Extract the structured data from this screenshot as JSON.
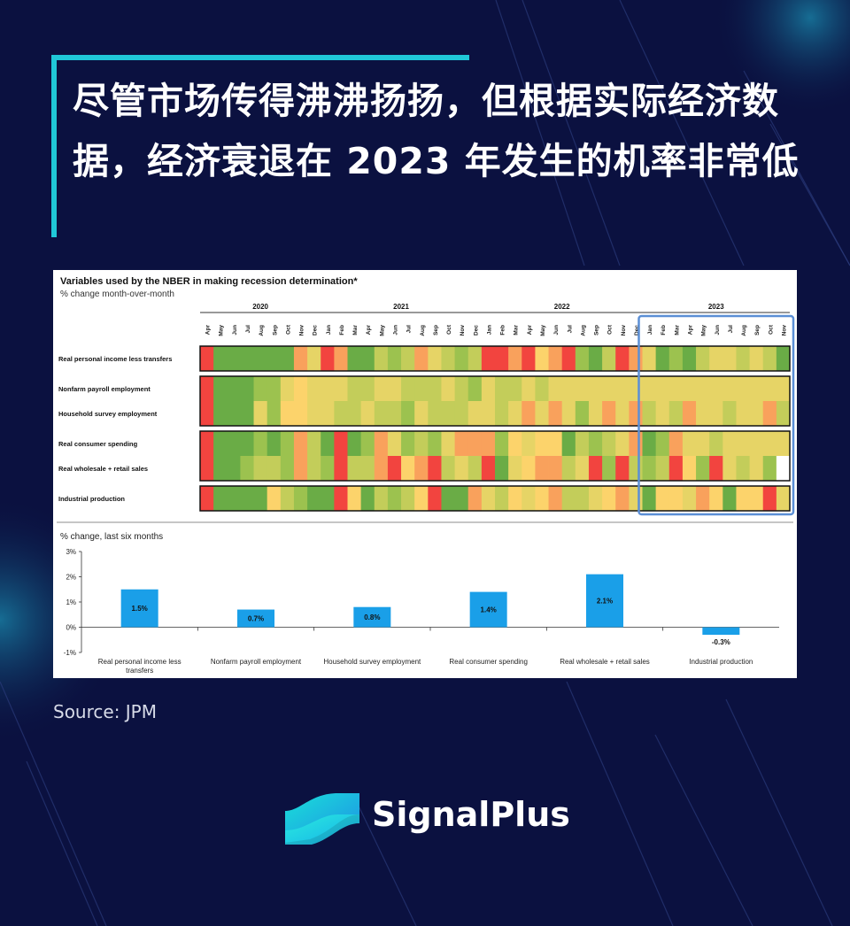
{
  "headline": "尽管市场传得沸沸扬扬，但根据实际经济数据，经济衰退在 2023 年发生的机率非常低",
  "source": "Source: JPM",
  "brand": {
    "name": "SignalPlus"
  },
  "colors": {
    "background": "#0b1140",
    "accent": "#20c8d8",
    "bar": "#1a9fe8",
    "highlight_box": "#5b8fd6"
  },
  "chart_data": [
    {
      "type": "heatmap",
      "title": "Variables used by the NBER in making recession determination*",
      "subtitle": "% change month-over-month",
      "years": [
        {
          "label": "2020",
          "start": 0,
          "end": 8
        },
        {
          "label": "2021",
          "start": 9,
          "end": 20
        },
        {
          "label": "2022",
          "start": 21,
          "end": 32
        },
        {
          "label": "2023",
          "start": 33,
          "end": 43
        }
      ],
      "months": [
        "Apr",
        "May",
        "Jun",
        "Jul",
        "Aug",
        "Sep",
        "Oct",
        "Nov",
        "Dec",
        "Jan",
        "Feb",
        "Mar",
        "Apr",
        "May",
        "Jun",
        "Jul",
        "Aug",
        "Sep",
        "Oct",
        "Nov",
        "Dec",
        "Jan",
        "Feb",
        "Mar",
        "Apr",
        "May",
        "Jun",
        "Jul",
        "Aug",
        "Sep",
        "Oct",
        "Nov",
        "Dec",
        "Jan",
        "Feb",
        "Mar",
        "Apr",
        "May",
        "Jun",
        "Jul",
        "Aug",
        "Sep",
        "Oct",
        "Nov"
      ],
      "scale_note": "cell values are a 1 (strongest, green) to 7 (weakest, red) colour score",
      "palette": {
        "1": "#6aac46",
        "2": "#9cc24f",
        "3": "#c3cd5a",
        "4": "#e6d466",
        "5": "#fcd36b",
        "6": "#f9a15c",
        "7": "#f2443f",
        "0": "#ffffff"
      },
      "highlight_period": "2023",
      "groups": [
        {
          "rows": [
            {
              "label": "Real personal income less transfers",
              "values": [
                7,
                1,
                1,
                1,
                1,
                1,
                1,
                6,
                4,
                7,
                6,
                1,
                1,
                3,
                2,
                3,
                6,
                4,
                3,
                2,
                3,
                7,
                7,
                6,
                7,
                5,
                6,
                7,
                2,
                1,
                3,
                7,
                6,
                4,
                1,
                2,
                1,
                3,
                4,
                4,
                3,
                4,
                3,
                1
              ]
            }
          ]
        },
        {
          "rows": [
            {
              "label": "Nonfarm payroll employment",
              "values": [
                7,
                1,
                1,
                1,
                2,
                2,
                4,
                5,
                4,
                4,
                4,
                3,
                3,
                4,
                4,
                3,
                3,
                3,
                4,
                3,
                2,
                4,
                3,
                3,
                4,
                3,
                4,
                4,
                4,
                4,
                4,
                4,
                4,
                4,
                4,
                4,
                4,
                4,
                4,
                4,
                4,
                4,
                4,
                4
              ]
            },
            {
              "label": "Household survey employment",
              "values": [
                7,
                1,
                1,
                1,
                4,
                2,
                5,
                5,
                4,
                4,
                3,
                3,
                4,
                3,
                3,
                2,
                4,
                3,
                3,
                3,
                4,
                4,
                3,
                4,
                6,
                4,
                6,
                4,
                2,
                4,
                6,
                4,
                6,
                3,
                4,
                3,
                6,
                4,
                4,
                3,
                4,
                4,
                6,
                3
              ]
            }
          ]
        },
        {
          "rows": [
            {
              "label": "Real consumer spending",
              "values": [
                7,
                1,
                1,
                1,
                2,
                1,
                2,
                6,
                3,
                1,
                7,
                1,
                2,
                6,
                4,
                2,
                3,
                2,
                4,
                6,
                6,
                6,
                2,
                5,
                4,
                5,
                5,
                1,
                3,
                2,
                3,
                4,
                6,
                1,
                2,
                6,
                4,
                4,
                3,
                4,
                4,
                4,
                4,
                4
              ]
            },
            {
              "label": "Real wholesale + retail sales",
              "values": [
                7,
                1,
                1,
                2,
                3,
                3,
                2,
                6,
                3,
                2,
                7,
                3,
                3,
                6,
                7,
                5,
                6,
                7,
                3,
                4,
                3,
                7,
                1,
                4,
                5,
                6,
                6,
                3,
                4,
                7,
                2,
                7,
                3,
                2,
                3,
                7,
                5,
                2,
                7,
                4,
                3,
                4,
                2,
                0
              ]
            }
          ]
        },
        {
          "rows": [
            {
              "label": "Industrial production",
              "values": [
                7,
                1,
                1,
                1,
                1,
                5,
                3,
                2,
                1,
                1,
                7,
                5,
                1,
                3,
                2,
                3,
                5,
                7,
                1,
                1,
                6,
                4,
                3,
                5,
                4,
                5,
                6,
                3,
                3,
                4,
                5,
                6,
                4,
                1,
                5,
                5,
                4,
                6,
                5,
                1,
                5,
                5,
                7,
                4
              ]
            }
          ]
        }
      ]
    },
    {
      "type": "bar",
      "title": "% change, last six months",
      "categories": [
        "Real personal income less transfers",
        "Nonfarm payroll employment",
        "Household survey employment",
        "Real consumer spending",
        "Real wholesale + retail sales",
        "Industrial production"
      ],
      "values": [
        1.5,
        0.7,
        0.8,
        1.4,
        2.1,
        -0.3
      ],
      "value_labels": [
        "1.5%",
        "0.7%",
        "0.8%",
        "1.4%",
        "2.1%",
        "-0.3%"
      ],
      "ylim": [
        -1,
        3
      ],
      "yticks": [
        {
          "value": 3,
          "label": "3%"
        },
        {
          "value": 2,
          "label": "2%"
        },
        {
          "value": 1,
          "label": "1%"
        },
        {
          "value": 0,
          "label": "0%"
        },
        {
          "value": -1,
          "label": "-1%"
        }
      ],
      "xlabel": "",
      "ylabel": ""
    }
  ]
}
